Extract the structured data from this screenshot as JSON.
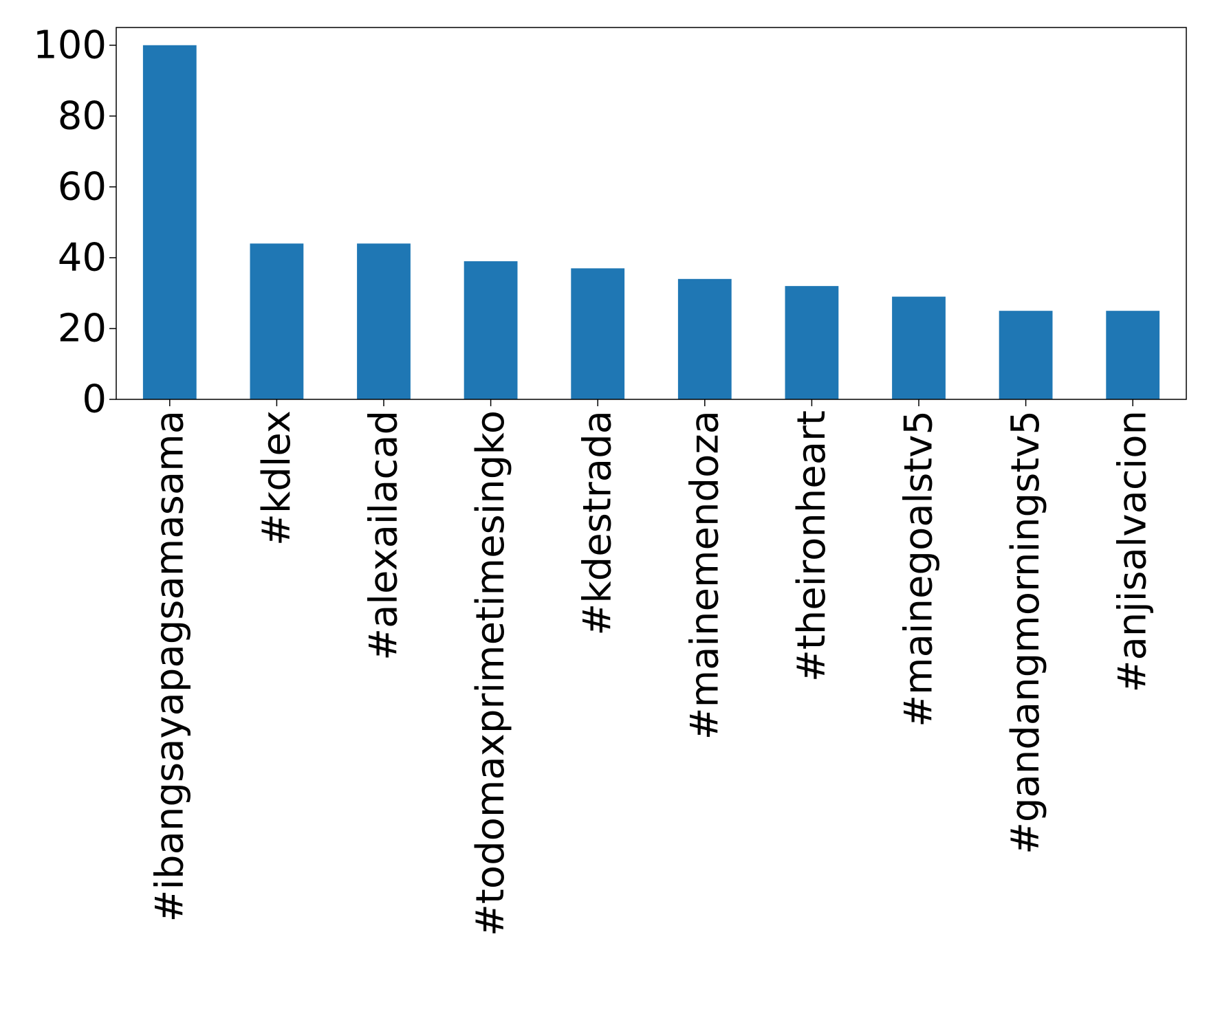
{
  "chart_data": {
    "type": "bar",
    "title": "",
    "xlabel": "",
    "ylabel": "",
    "categories": [
      "#ibangsayapagsamasama",
      "#kdlex",
      "#alexailacad",
      "#todomaxprimetimesingko",
      "#kdestrada",
      "#mainemendoza",
      "#theironheart",
      "#mainegoalstv5",
      "#gandangmorningstv5",
      "#anjisalvacion"
    ],
    "values": [
      100,
      44,
      44,
      39,
      37,
      34,
      32,
      29,
      25,
      25
    ],
    "ylim": [
      0,
      105
    ],
    "yticks": [
      0,
      20,
      40,
      60,
      80,
      100
    ],
    "bar_color": "#1f77b4",
    "grid": false,
    "legend": "none"
  }
}
